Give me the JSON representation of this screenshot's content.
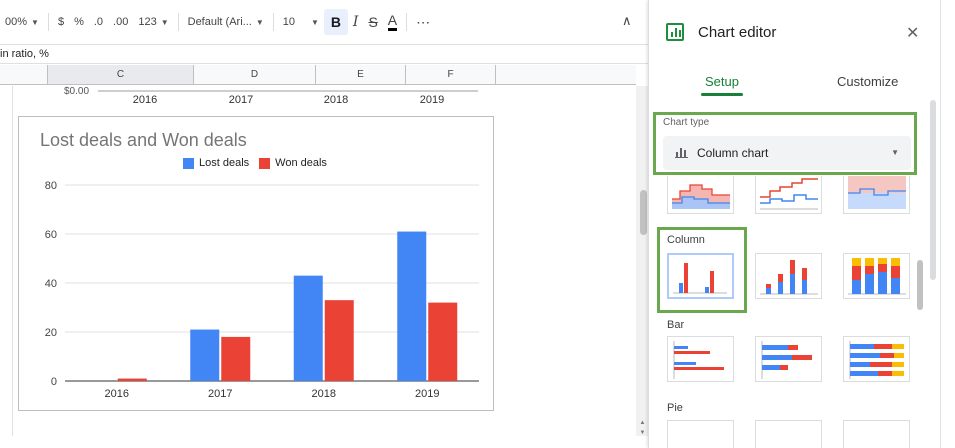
{
  "toolbar": {
    "zoom": "00%",
    "currency": "$",
    "percent": "%",
    "decrease_decimals": ".0",
    "increase_decimals": ".00",
    "format_more": "123",
    "font": "Default (Ari...",
    "font_size": "10",
    "bold": "B",
    "italic": "I",
    "strikethrough": "S",
    "text_color": "A",
    "more": "⋯",
    "collapse": "∧"
  },
  "formula_bar": {
    "value": "in ratio, %"
  },
  "columns": [
    "C",
    "D",
    "E",
    "F"
  ],
  "top_chart_fragment": {
    "y_label": "$0.00",
    "x_labels": [
      "2016",
      "2017",
      "2018",
      "2019"
    ]
  },
  "chart_data": {
    "type": "bar",
    "title": "Lost deals and Won deals",
    "categories": [
      "2016",
      "2017",
      "2018",
      "2019"
    ],
    "series": [
      {
        "name": "Lost deals",
        "color": "#4285f4",
        "values": [
          0,
          21,
          43,
          61
        ]
      },
      {
        "name": "Won deals",
        "color": "#ea4335",
        "values": [
          1,
          18,
          33,
          32
        ]
      }
    ],
    "yticks": [
      "0",
      "20",
      "40",
      "60",
      "80"
    ],
    "ylim": [
      0,
      80
    ],
    "grid": true,
    "legend": "top"
  },
  "editor": {
    "title": "Chart editor",
    "close": "✕",
    "tabs": {
      "setup": "Setup",
      "customize": "Customize"
    },
    "chart_type_label": "Chart type",
    "chart_type_value": "Column chart",
    "sections": {
      "column": "Column",
      "bar": "Bar",
      "pie": "Pie"
    }
  },
  "colors": {
    "green_accent": "#188038",
    "highlight_box": "#6aa84f",
    "blue": "#4285f4",
    "red": "#ea4335",
    "yellow": "#fbbc04"
  }
}
